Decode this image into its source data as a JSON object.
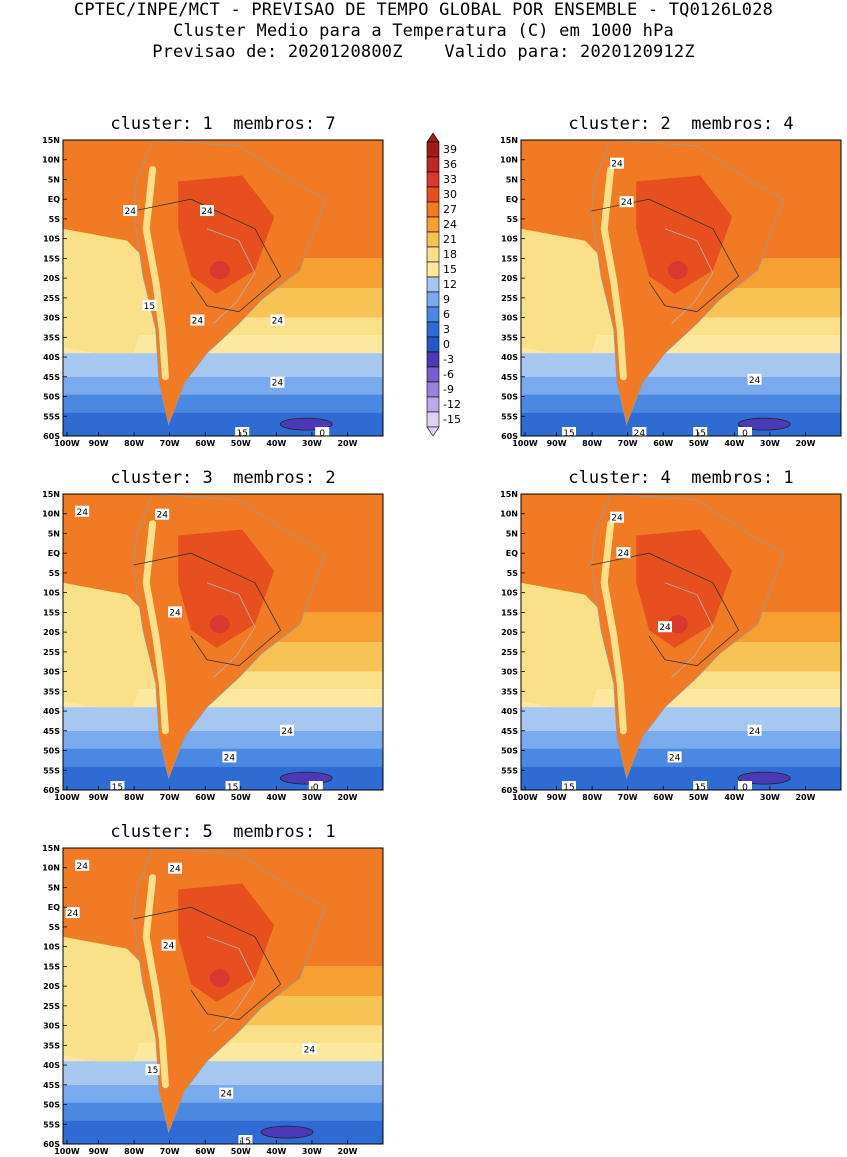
{
  "header": {
    "line1": "CPTEC/INPE/MCT - PREVISAO DE TEMPO GLOBAL POR ENSEMBLE - TQ0126L028",
    "line2": "Cluster Medio para a Temperatura (C) em 1000 hPa",
    "line3": "Previsao de: 2020120800Z    Valido para: 2020120912Z"
  },
  "panels": [
    {
      "title": "cluster: 1  membros: 7",
      "contours": [
        "24",
        "24",
        "24",
        "24",
        "24",
        "15",
        "15",
        "0"
      ]
    },
    {
      "title": "cluster: 2  membros: 4",
      "contours": [
        "24",
        "24",
        "24",
        "24",
        "15",
        "15",
        "0"
      ]
    },
    {
      "title": "cluster: 3  membros: 2",
      "contours": [
        "24",
        "24",
        "24",
        "24",
        "24",
        "15",
        "15",
        "0"
      ]
    },
    {
      "title": "cluster: 4  membros: 1",
      "contours": [
        "24",
        "24",
        "24",
        "24",
        "24",
        "15",
        "15",
        "0"
      ]
    },
    {
      "title": "cluster: 5  membros: 1",
      "contours": [
        "24",
        "24",
        "24",
        "24",
        "24",
        "24",
        "15",
        "15"
      ]
    }
  ],
  "lat_labels": [
    "15N",
    "10N",
    "5N",
    "EQ",
    "5S",
    "10S",
    "15S",
    "20S",
    "25S",
    "30S",
    "35S",
    "40S",
    "45S",
    "50S",
    "55S",
    "60S"
  ],
  "lon_labels": [
    "100W",
    "90W",
    "80W",
    "70W",
    "60W",
    "50W",
    "40W",
    "30W",
    "20W"
  ],
  "legend": {
    "labels": [
      "39",
      "36",
      "33",
      "30",
      "27",
      "24",
      "21",
      "18",
      "15",
      "12",
      "9",
      "6",
      "3",
      "0",
      "-3",
      "-6",
      "-9",
      "-12",
      "-15"
    ],
    "colors": [
      "#a01a1a",
      "#c0262a",
      "#d8382e",
      "#e84f1e",
      "#f07b24",
      "#f5a030",
      "#f8c355",
      "#fbe08a",
      "#fde8a0",
      "#a6c8f0",
      "#7aaaee",
      "#4a88e2",
      "#2e6cd4",
      "#2458c6",
      "#4a3ab8",
      "#7a5ccc",
      "#9c82dc",
      "#bcaae8",
      "#ddd2f4"
    ]
  }
}
